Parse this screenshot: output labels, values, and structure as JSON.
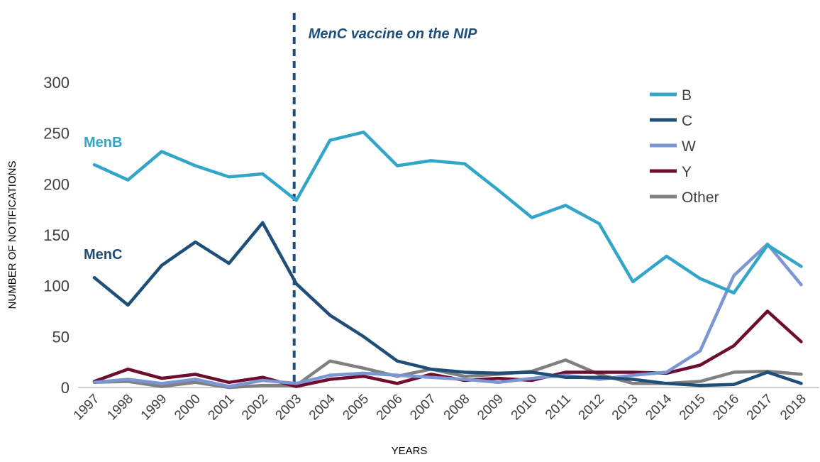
{
  "chart_data": {
    "type": "line",
    "title": "",
    "xlabel": "YEARS",
    "ylabel": "NUMBER OF NOTIFICATIONS",
    "ylim": [
      0,
      300
    ],
    "yticks": [
      0,
      50,
      100,
      150,
      200,
      250,
      300
    ],
    "categories": [
      "1997",
      "1998",
      "1999",
      "2000",
      "2001",
      "2002",
      "2003",
      "2004",
      "2005",
      "2006",
      "2007",
      "2008",
      "2009",
      "2010",
      "2011",
      "2012",
      "2013",
      "2014",
      "2015",
      "2016",
      "2017",
      "2018"
    ],
    "series": [
      {
        "name": "B",
        "color": "#31a6c9",
        "values": [
          219,
          204,
          232,
          218,
          207,
          210,
          184,
          243,
          251,
          218,
          223,
          220,
          194,
          167,
          179,
          161,
          104,
          129,
          107,
          93,
          140,
          119
        ]
      },
      {
        "name": "C",
        "color": "#1f4e79",
        "values": [
          108,
          81,
          120,
          143,
          122,
          162,
          102,
          71,
          50,
          26,
          18,
          15,
          14,
          15,
          10,
          10,
          8,
          4,
          2,
          3,
          15,
          4
        ]
      },
      {
        "name": "W",
        "color": "#7b96d3",
        "values": [
          5,
          8,
          4,
          8,
          1,
          7,
          4,
          12,
          14,
          12,
          10,
          8,
          5,
          9,
          12,
          8,
          12,
          15,
          36,
          110,
          141,
          101
        ]
      },
      {
        "name": "Y",
        "color": "#6e0d2f",
        "values": [
          6,
          18,
          9,
          13,
          5,
          10,
          1,
          8,
          11,
          4,
          13,
          7,
          9,
          7,
          15,
          15,
          15,
          14,
          22,
          41,
          75,
          45
        ]
      },
      {
        "name": "Other",
        "color": "#808080",
        "values": [
          5,
          6,
          1,
          5,
          0,
          2,
          2,
          26,
          19,
          11,
          18,
          11,
          13,
          16,
          27,
          13,
          4,
          4,
          6,
          15,
          16,
          13
        ]
      }
    ],
    "legend_position": "top-right",
    "annotations": [
      {
        "text": "MenB",
        "series": "B",
        "color": "#31a6c9"
      },
      {
        "text": "MenC",
        "series": "C",
        "color": "#1f4e79"
      }
    ],
    "event": {
      "year": "2003",
      "text": "MenC vaccine on the NIP",
      "color": "#1f4e79"
    }
  }
}
